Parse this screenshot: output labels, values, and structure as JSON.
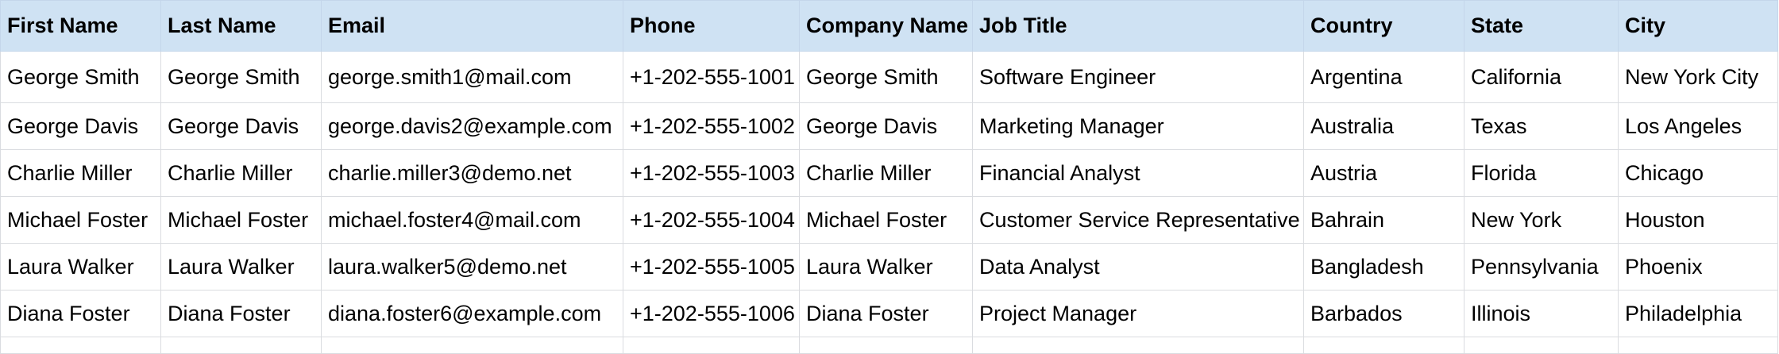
{
  "columns": [
    "First Name",
    "Last Name",
    "Email",
    "Phone",
    "Company Name",
    "Job Title",
    "Country",
    "State",
    "City"
  ],
  "rows": [
    [
      "George Smith",
      "George Smith",
      "george.smith1@mail.com",
      "+1-202-555-1001",
      "George Smith",
      "Software Engineer",
      "Argentina",
      "California",
      "New York City"
    ],
    [
      "George Davis",
      "George Davis",
      "george.davis2@example.com",
      "+1-202-555-1002",
      "George Davis",
      "Marketing Manager",
      "Australia",
      "Texas",
      "Los Angeles"
    ],
    [
      "Charlie Miller",
      "Charlie Miller",
      "charlie.miller3@demo.net",
      "+1-202-555-1003",
      "Charlie Miller",
      "Financial Analyst",
      "Austria",
      "Florida",
      "Chicago"
    ],
    [
      "Michael Foster",
      "Michael Foster",
      "michael.foster4@mail.com",
      "+1-202-555-1004",
      "Michael Foster",
      "Customer Service Representative",
      "Bahrain",
      "New York",
      "Houston"
    ],
    [
      "Laura Walker",
      "Laura Walker",
      "laura.walker5@demo.net",
      "+1-202-555-1005",
      "Laura Walker",
      "Data Analyst",
      "Bangladesh",
      "Pennsylvania",
      "Phoenix"
    ],
    [
      "Diana Foster",
      "Diana Foster",
      "diana.foster6@example.com",
      "+1-202-555-1006",
      "Diana Foster",
      "Project Manager",
      "Barbados",
      "Illinois",
      "Philadelphia"
    ]
  ],
  "colors": {
    "header_bg": "#cfe2f3",
    "gridline": "#dadce0"
  }
}
